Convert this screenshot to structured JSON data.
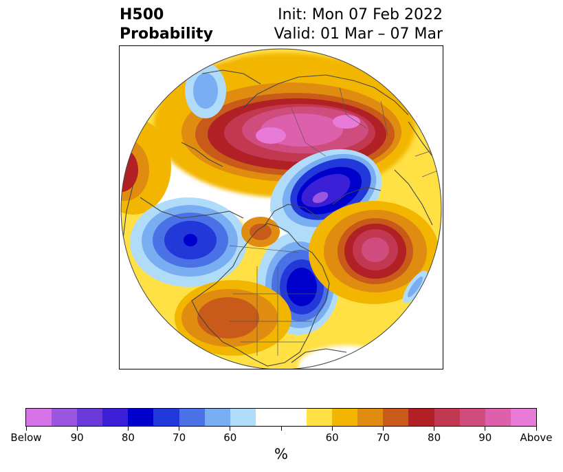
{
  "title": {
    "left_line1": "H500",
    "left_line2": "Probability",
    "right_line1": "Init: Mon 07 Feb 2022",
    "right_line2": "Valid: 01 Mar – 07 Mar"
  },
  "colorbar": {
    "unit": "%",
    "colors": [
      "#d673e8",
      "#9b57e0",
      "#6a3ad8",
      "#3a1fd6",
      "#0000cc",
      "#2238d8",
      "#4a72e6",
      "#7aaef2",
      "#b0dcfa",
      "#ffffff",
      "#ffffff",
      "#ffe045",
      "#f2b600",
      "#e08c10",
      "#c85a1a",
      "#b02024",
      "#c23850",
      "#cf4d7e",
      "#dd60ac",
      "#e87ad8"
    ],
    "tick_labels": [
      "Below",
      "90",
      "80",
      "70",
      "60",
      "",
      "60",
      "70",
      "80",
      "90",
      "Above"
    ]
  },
  "map": {
    "projection": "north-polar-stereographic",
    "field": "500 hPa height probability anomaly",
    "features": {
      "coastlines": true,
      "country_borders": true,
      "state_borders": true,
      "circular_boundary": true
    }
  }
}
